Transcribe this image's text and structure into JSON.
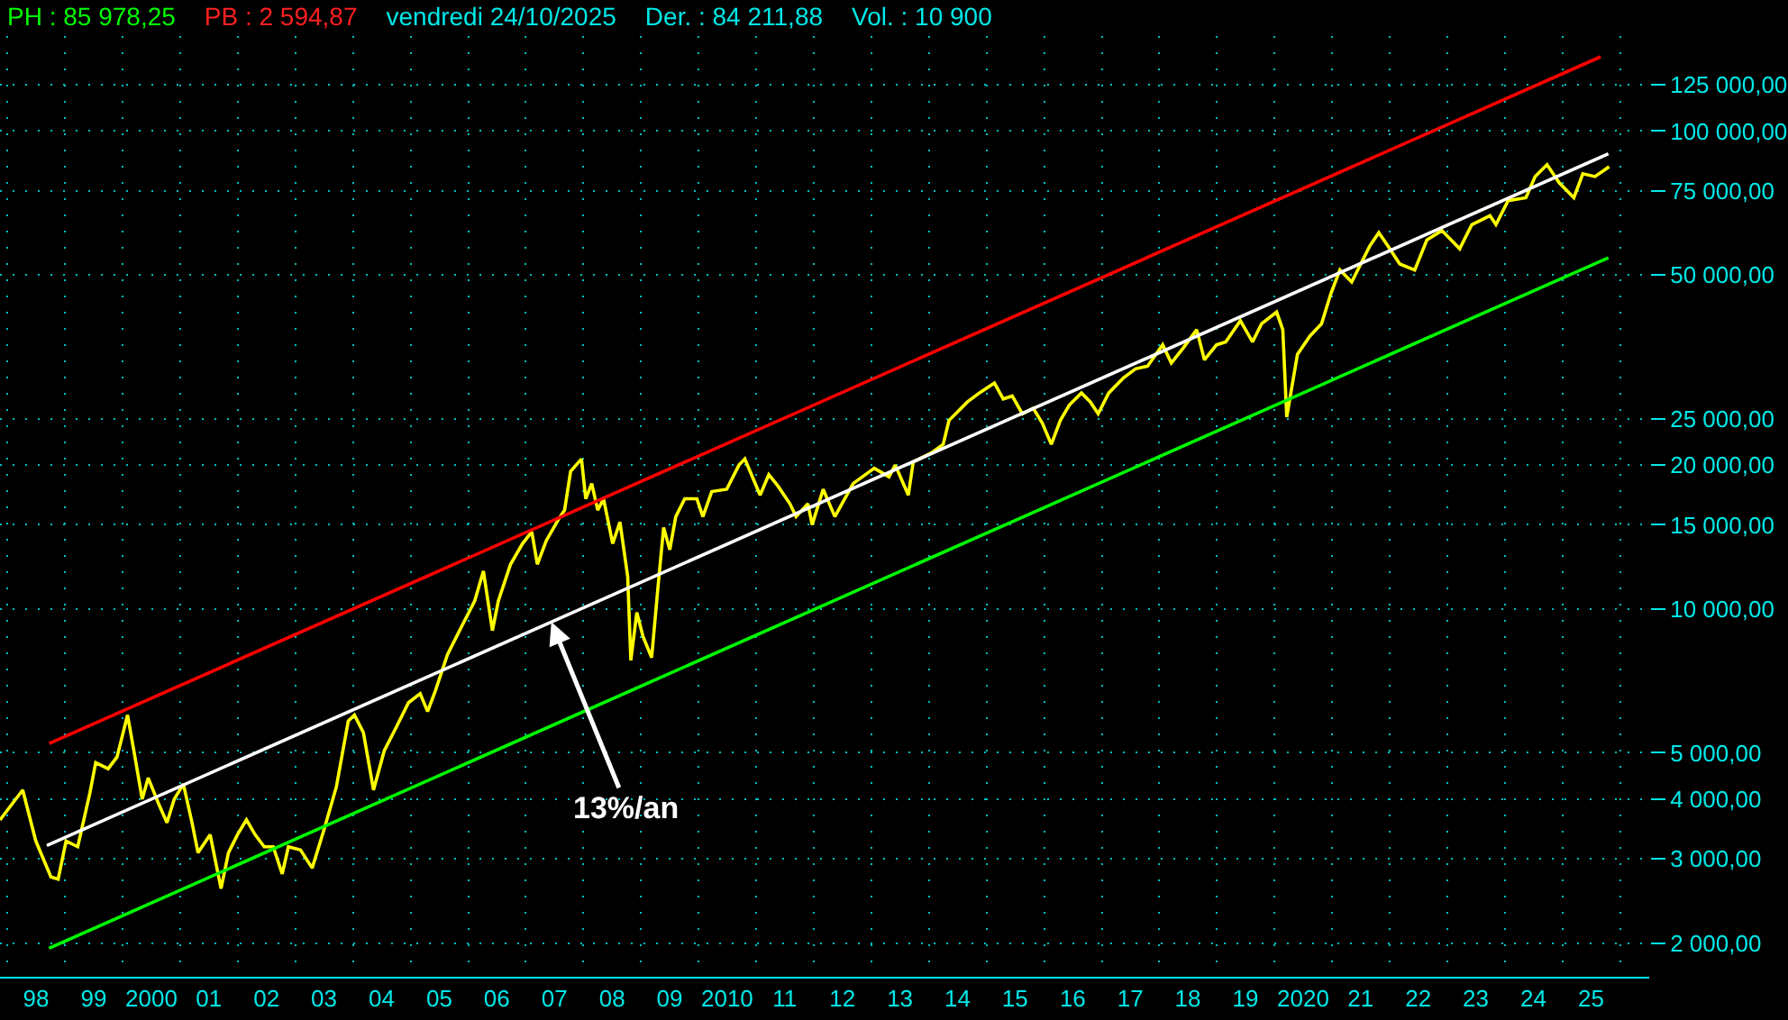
{
  "chart_data": {
    "type": "line",
    "annotations": [
      "PH : 85 978,25",
      "PB : 2 594,87",
      "vendredi 24/10/2025",
      "Der. : 84 211,88",
      "Vol. : 10 900",
      {
        "text": "13%/an",
        "x": "2007-06-12",
        "y": 9390
      }
    ],
    "xlim": [
      "1997-11-14",
      "2026-07-05"
    ],
    "xticks": [
      {
        "value": "1998-07-01",
        "label": "98"
      },
      {
        "value": "1999-07-01",
        "label": "99"
      },
      {
        "value": "2000-07-01",
        "label": "2000"
      },
      {
        "value": "2001-07-01",
        "label": "01"
      },
      {
        "value": "2002-07-01",
        "label": "02"
      },
      {
        "value": "2003-07-01",
        "label": "03"
      },
      {
        "value": "2004-07-01",
        "label": "04"
      },
      {
        "value": "2005-07-01",
        "label": "05"
      },
      {
        "value": "2006-07-01",
        "label": "06"
      },
      {
        "value": "2007-07-01",
        "label": "07"
      },
      {
        "value": "2008-07-01",
        "label": "08"
      },
      {
        "value": "2009-07-01",
        "label": "09"
      },
      {
        "value": "2010-07-01",
        "label": "2010"
      },
      {
        "value": "2011-07-01",
        "label": "11"
      },
      {
        "value": "2012-07-01",
        "label": "12"
      },
      {
        "value": "2013-07-01",
        "label": "13"
      },
      {
        "value": "2014-07-01",
        "label": "14"
      },
      {
        "value": "2015-07-01",
        "label": "15"
      },
      {
        "value": "2016-07-01",
        "label": "16"
      },
      {
        "value": "2017-07-01",
        "label": "17"
      },
      {
        "value": "2018-07-01",
        "label": "18"
      },
      {
        "value": "2019-07-01",
        "label": "19"
      },
      {
        "value": "2020-07-01",
        "label": "2020"
      },
      {
        "value": "2021-07-01",
        "label": "21"
      },
      {
        "value": "2022-07-01",
        "label": "22"
      },
      {
        "value": "2023-07-01",
        "label": "23"
      },
      {
        "value": "2024-07-01",
        "label": "24"
      },
      {
        "value": "2025-07-01",
        "label": "25"
      },
      {
        "value": "1998-01-01",
        "label": null
      },
      {
        "value": "1999-01-01",
        "label": null
      },
      {
        "value": "2000-01-01",
        "label": null
      },
      {
        "value": "2001-01-01",
        "label": null
      },
      {
        "value": "2002-01-01",
        "label": null
      },
      {
        "value": "2003-01-01",
        "label": null
      },
      {
        "value": "2004-01-01",
        "label": null
      },
      {
        "value": "2005-01-01",
        "label": null
      },
      {
        "value": "2006-01-01",
        "label": null
      },
      {
        "value": "2007-01-01",
        "label": null
      },
      {
        "value": "2008-01-01",
        "label": null
      },
      {
        "value": "2009-01-01",
        "label": null
      },
      {
        "value": "2010-01-01",
        "label": null
      },
      {
        "value": "2011-01-01",
        "label": null
      },
      {
        "value": "2012-01-01",
        "label": null
      },
      {
        "value": "2013-01-01",
        "label": null
      },
      {
        "value": "2014-01-01",
        "label": null
      },
      {
        "value": "2015-01-01",
        "label": null
      },
      {
        "value": "2016-01-01",
        "label": null
      },
      {
        "value": "2017-01-01",
        "label": null
      },
      {
        "value": "2018-01-01",
        "label": null
      },
      {
        "value": "2019-01-01",
        "label": null
      },
      {
        "value": "2020-01-01",
        "label": null
      },
      {
        "value": "2021-01-01",
        "label": null
      },
      {
        "value": "2022-01-01",
        "label": null
      },
      {
        "value": "2023-01-01",
        "label": null
      },
      {
        "value": "2024-01-01",
        "label": null
      },
      {
        "value": "2025-01-01",
        "label": null
      },
      {
        "value": "2026-01-01",
        "label": null
      }
    ],
    "ylim": [
      1700,
      158000
    ],
    "yticks": [
      {
        "value": 2000,
        "label": "2 000,00"
      },
      {
        "value": 3000,
        "label": "3 000,00"
      },
      {
        "value": 4000,
        "label": "4 000,00"
      },
      {
        "value": 5000,
        "label": "5 000,00"
      },
      {
        "value": 10000,
        "label": "10 000,00"
      },
      {
        "value": 15000,
        "label": "15 000,00"
      },
      {
        "value": 20000,
        "label": "20 000,00"
      },
      {
        "value": 25000,
        "label": "25 000,00"
      },
      {
        "value": 50000,
        "label": "50 000,00"
      },
      {
        "value": 75000,
        "label": "75 000,00"
      },
      {
        "value": 100000,
        "label": "100 000,00"
      },
      {
        "value": 125000,
        "label": "125 000,00"
      }
    ],
    "log": true,
    "grid": true,
    "series": [
      {
        "color": "#ffff00",
        "x": [
          "1997-11-14",
          "1998-04-07",
          "1998-06-29",
          "1998-10-03",
          "1998-11-18",
          "1999-01-07",
          "1999-03-22",
          "1999-06-07",
          "1999-07-14",
          "1999-10-01",
          "1999-11-26",
          "2000-02-01",
          "2000-03-19",
          "2000-05-04",
          "2000-06-11",
          "2000-08-19",
          "2000-10-08",
          "2000-11-23",
          "2001-01-20",
          "2001-03-16",
          "2001-04-23",
          "2001-07-09",
          "2001-09-16",
          "2001-11-02",
          "2001-12-29",
          "2002-02-24",
          "2002-04-20",
          "2002-06-17",
          "2002-08-13",
          "2002-10-09",
          "2002-11-17",
          "2003-02-02",
          "2003-04-17",
          "2003-07-02",
          "2003-09-17",
          "2003-12-02",
          "2004-01-10",
          "2004-03-07",
          "2004-05-10",
          "2004-07-17",
          "2004-10-03",
          "2004-12-18",
          "2005-03-02",
          "2005-04-18",
          "2005-06-07",
          "2005-08-22",
          "2005-11-26",
          "2006-02-11",
          "2006-04-07",
          "2006-06-03",
          "2006-07-11",
          "2006-09-26",
          "2006-12-11",
          "2007-02-08",
          "2007-03-15",
          "2007-05-11",
          "2007-07-27",
          "2007-09-04",
          "2007-10-12",
          "2007-12-20",
          "2008-01-16",
          "2008-02-23",
          "2008-04-01",
          "2008-05-08",
          "2008-07-05",
          "2008-08-20",
          "2008-10-08",
          "2008-10-28",
          "2008-12-05",
          "2009-01-13",
          "2009-03-09",
          "2009-04-17",
          "2009-05-24",
          "2009-07-02",
          "2009-08-09",
          "2009-10-05",
          "2009-12-21",
          "2010-01-28",
          "2010-03-25",
          "2010-06-28",
          "2010-09-14",
          "2010-10-21",
          "2011-01-26",
          "2011-03-22",
          "2011-05-18",
          "2011-08-03",
          "2011-09-11",
          "2011-11-25",
          "2011-12-22",
          "2012-03-01",
          "2012-05-14",
          "2012-09-07",
          "2013-01-19",
          "2013-04-22",
          "2013-06-01",
          "2013-08-23",
          "2013-09-23",
          "2014-01-16",
          "2014-04-01",
          "2014-05-08",
          "2014-09-01",
          "2014-11-16",
          "2015-02-20",
          "2015-04-17",
          "2015-06-13",
          "2015-08-16",
          "2015-10-24",
          "2015-12-20",
          "2016-02-16",
          "2016-04-13",
          "2016-06-09",
          "2016-08-25",
          "2016-10-21",
          "2016-12-09",
          "2017-02-14",
          "2017-05-17",
          "2017-08-03",
          "2017-10-18",
          "2018-01-22",
          "2018-03-18",
          "2018-06-03",
          "2018-08-26",
          "2018-10-14",
          "2018-12-30",
          "2019-02-26",
          "2019-05-30",
          "2019-08-15",
          "2019-10-11",
          "2020-01-15",
          "2020-02-23",
          "2020-03-19",
          "2020-05-26",
          "2020-08-12",
          "2020-10-26",
          "2020-12-23",
          "2021-02-19",
          "2021-05-05",
          "2021-08-28",
          "2021-10-24",
          "2021-12-20",
          "2022-03-06",
          "2022-06-09",
          "2022-08-25",
          "2022-11-28",
          "2023-03-21",
          "2023-06-06",
          "2023-09-29",
          "2023-11-06",
          "2024-01-22",
          "2024-05-14",
          "2024-07-11",
          "2024-09-25",
          "2024-12-10",
          "2025-03-14",
          "2025-05-10",
          "2025-07-26",
          "2025-10-24"
        ],
        "values": [
          3620,
          4180,
          3270,
          2750,
          2720,
          3270,
          3180,
          4120,
          4770,
          4630,
          4900,
          6000,
          4900,
          4000,
          4430,
          3890,
          3570,
          4000,
          4300,
          3570,
          3090,
          3370,
          2600,
          3090,
          3370,
          3620,
          3370,
          3180,
          3180,
          2790,
          3180,
          3130,
          2870,
          3460,
          4240,
          5830,
          6000,
          5510,
          4180,
          5050,
          5670,
          6370,
          6650,
          6100,
          6750,
          8030,
          9270,
          10400,
          12000,
          9010,
          10400,
          12400,
          13700,
          14500,
          12400,
          13900,
          15400,
          16100,
          19400,
          20600,
          17000,
          18300,
          16100,
          17000,
          13700,
          15200,
          11700,
          7800,
          9830,
          8760,
          7910,
          11000,
          14800,
          13300,
          15600,
          17000,
          17000,
          15600,
          17600,
          17800,
          20000,
          20600,
          17300,
          19100,
          18100,
          16600,
          15600,
          16600,
          15000,
          17800,
          15600,
          18300,
          19700,
          18900,
          20000,
          17300,
          20300,
          21200,
          22100,
          24800,
          27100,
          28300,
          29700,
          27500,
          27900,
          25600,
          26300,
          24500,
          22100,
          24800,
          26700,
          28300,
          27100,
          25600,
          28300,
          30400,
          31800,
          32200,
          35700,
          32700,
          35200,
          38400,
          33200,
          35700,
          36200,
          40100,
          36200,
          39500,
          41800,
          38400,
          25200,
          34100,
          37200,
          39500,
          45600,
          51200,
          48300,
          57500,
          61300,
          57500,
          52700,
          51200,
          59200,
          61900,
          56700,
          63700,
          66500,
          63700,
          71500,
          72500,
          80300,
          85000,
          78000,
          72500,
          81400,
          80300,
          84200
        ]
      },
      {
        "color": "#ff0000",
        "x": [
          "1998-09-22",
          "2025-08-31"
        ],
        "values": [
          5230,
          143000
        ]
      },
      {
        "color": "#ffffff",
        "x": [
          "1998-09-07",
          "2025-10-19"
        ],
        "values": [
          3200,
          89600
        ]
      },
      {
        "color": "#00ff00",
        "x": [
          "1998-09-21",
          "2025-10-19"
        ],
        "values": [
          1950,
          54300
        ]
      }
    ]
  }
}
